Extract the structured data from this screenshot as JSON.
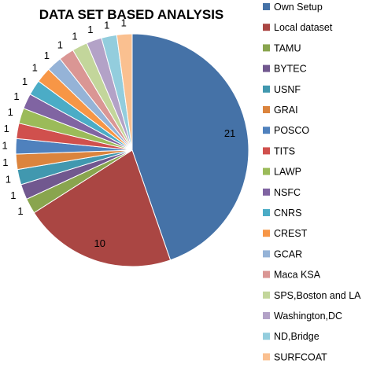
{
  "chart_data": {
    "type": "pie",
    "title": "DATA SET BASED ANALYSIS",
    "legend_position": "right",
    "start_angle_deg": 0,
    "direction": "clockwise",
    "slices": [
      {
        "name": "Own Setup",
        "value": 21,
        "color": "#4572A7",
        "label": "21"
      },
      {
        "name": "Local dataset",
        "value": 10,
        "color": "#AA4643",
        "label": "10"
      },
      {
        "name": "TAMU",
        "value": 1,
        "color": "#89A54E",
        "label": "1"
      },
      {
        "name": "BYTEC",
        "value": 1,
        "color": "#71588F",
        "label": "1"
      },
      {
        "name": "USNF",
        "value": 1,
        "color": "#4198AF",
        "label": "1"
      },
      {
        "name": "GRAI",
        "value": 1,
        "color": "#DB843D",
        "label": "1"
      },
      {
        "name": "POSCO",
        "value": 1,
        "color": "#4F81BD",
        "label": "1"
      },
      {
        "name": "TITS",
        "value": 1,
        "color": "#D0504D",
        "label": "1"
      },
      {
        "name": "LAWP",
        "value": 1,
        "color": "#9BBB59",
        "label": "1"
      },
      {
        "name": "NSFC",
        "value": 1,
        "color": "#8064A2",
        "label": "1"
      },
      {
        "name": "CNRS",
        "value": 1,
        "color": "#4BACC6",
        "label": "1"
      },
      {
        "name": "CREST",
        "value": 1,
        "color": "#F79646",
        "label": "1"
      },
      {
        "name": "GCAR",
        "value": 1,
        "color": "#95B3D7",
        "label": "1"
      },
      {
        "name": "Maca KSA",
        "value": 1,
        "color": "#DA9694",
        "label": "1"
      },
      {
        "name": "SPS,Boston and LA",
        "value": 1,
        "color": "#C3D69B",
        "label": "1"
      },
      {
        "name": "Washington,DC",
        "value": 1,
        "color": "#B3A2C7",
        "label": "1"
      },
      {
        "name": "ND,Bridge",
        "value": 1,
        "color": "#93CDDD",
        "label": "1"
      },
      {
        "name": "SURFCOAT",
        "value": 1,
        "color": "#FAC090",
        "label": "1"
      }
    ]
  }
}
